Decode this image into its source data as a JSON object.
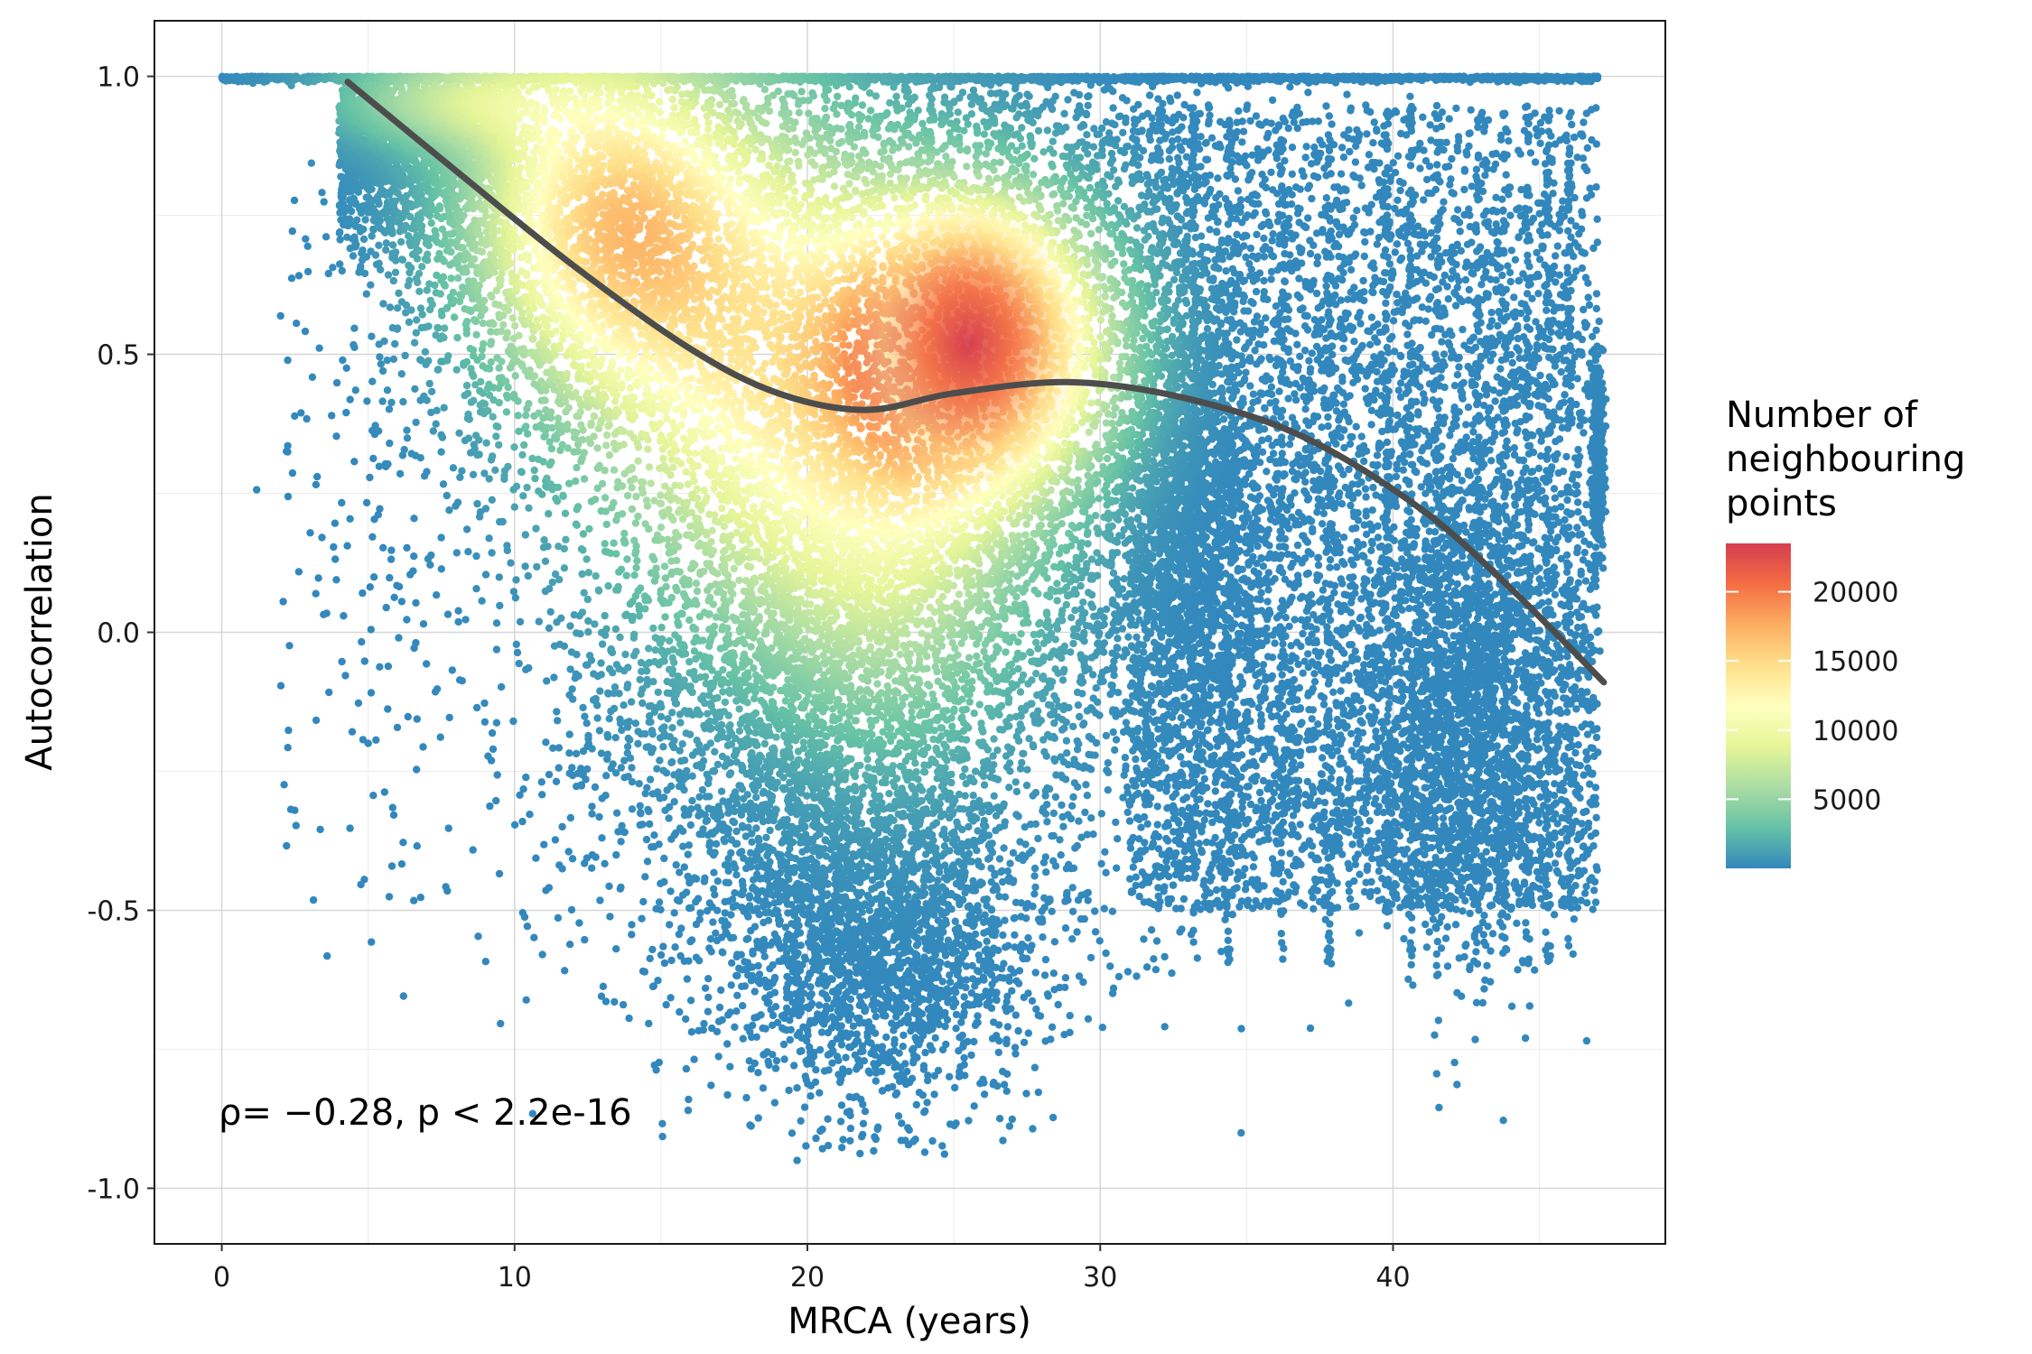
{
  "chart_data": {
    "type": "scatter",
    "xlabel": "MRCA (years)",
    "ylabel": "Autocorrelation",
    "xlim": [
      -2.3,
      49.3
    ],
    "ylim": [
      -1.1,
      1.1
    ],
    "x_ticks": [
      0,
      10,
      20,
      30,
      40
    ],
    "x_tick_labels": [
      "0",
      "10",
      "20",
      "30",
      "40"
    ],
    "y_ticks": [
      -1.0,
      -0.5,
      0.0,
      0.5,
      1.0
    ],
    "y_tick_labels": [
      "-1.0",
      "-0.5",
      "0.0",
      "0.5",
      "1.0"
    ],
    "grid": true,
    "annotation": "ρ= −0.28, p < 2.2e-16",
    "legend": {
      "title": [
        "Number of",
        "neighbouring",
        "points"
      ],
      "position": "right",
      "min": 0,
      "max": 23500,
      "ticks": [
        5000,
        10000,
        15000,
        20000
      ],
      "tick_labels": [
        "5000",
        "10000",
        "15000",
        "20000"
      ],
      "colors": [
        "#3288bd",
        "#66c2a5",
        "#abdda4",
        "#e6f598",
        "#ffffbf",
        "#fee08b",
        "#fdae61",
        "#f46d43",
        "#d53e4f"
      ]
    },
    "density_peak": {
      "x": 25.5,
      "y": 0.52,
      "value": 23000
    },
    "trend_line": {
      "x": [
        4.3,
        8,
        12,
        16,
        19,
        22,
        25,
        29,
        33,
        37,
        41,
        44,
        47.2
      ],
      "y": [
        0.99,
        0.83,
        0.66,
        0.51,
        0.43,
        0.4,
        0.43,
        0.45,
        0.42,
        0.35,
        0.22,
        0.08,
        -0.09
      ]
    }
  }
}
